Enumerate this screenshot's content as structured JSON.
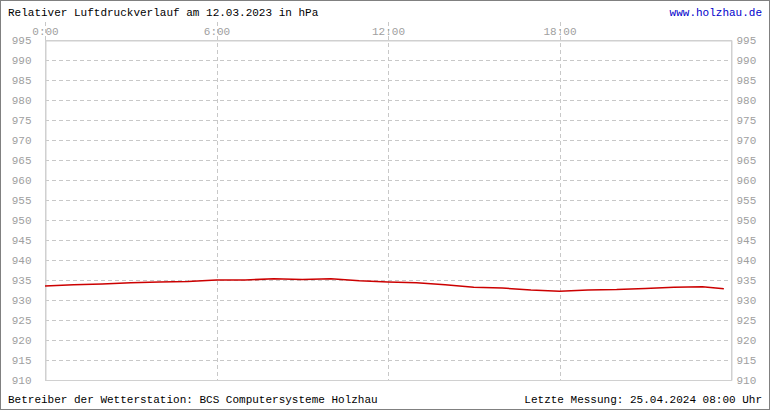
{
  "chart_data": {
    "type": "line",
    "title": "Relativer Luftdruckverlauf am 12.03.2023 in hPa",
    "annotations": [
      "www.holzhau.de",
      "Betreiber der Wetterstation: BCS Computersysteme Holzhau",
      "Letzte Messung: 25.04.2024 08:00 Uhr"
    ],
    "x": [
      0,
      1,
      2,
      3,
      4,
      5,
      6,
      7,
      8,
      9,
      10,
      11,
      12,
      13,
      14,
      15,
      16,
      17,
      18,
      19,
      20,
      21,
      22,
      23,
      23.75
    ],
    "values": [
      933.5,
      933.8,
      934.0,
      934.3,
      934.5,
      934.6,
      935.0,
      935.0,
      935.3,
      935.1,
      935.3,
      934.8,
      934.5,
      934.3,
      933.8,
      933.2,
      933.0,
      932.5,
      932.2,
      932.5,
      932.6,
      932.9,
      933.2,
      933.3,
      932.8
    ],
    "color": "#cc0000",
    "xlim": [
      0,
      24
    ],
    "xticks": [
      {
        "value": 0,
        "label": "0:00"
      },
      {
        "value": 6,
        "label": "6:00"
      },
      {
        "value": 12,
        "label": "12:00"
      },
      {
        "value": 18,
        "label": "18:00"
      }
    ],
    "ylim": [
      910,
      995
    ],
    "yticks": [
      910,
      915,
      920,
      925,
      930,
      935,
      940,
      945,
      950,
      955,
      960,
      965,
      970,
      975,
      980,
      985,
      990,
      995
    ],
    "grid": true
  }
}
